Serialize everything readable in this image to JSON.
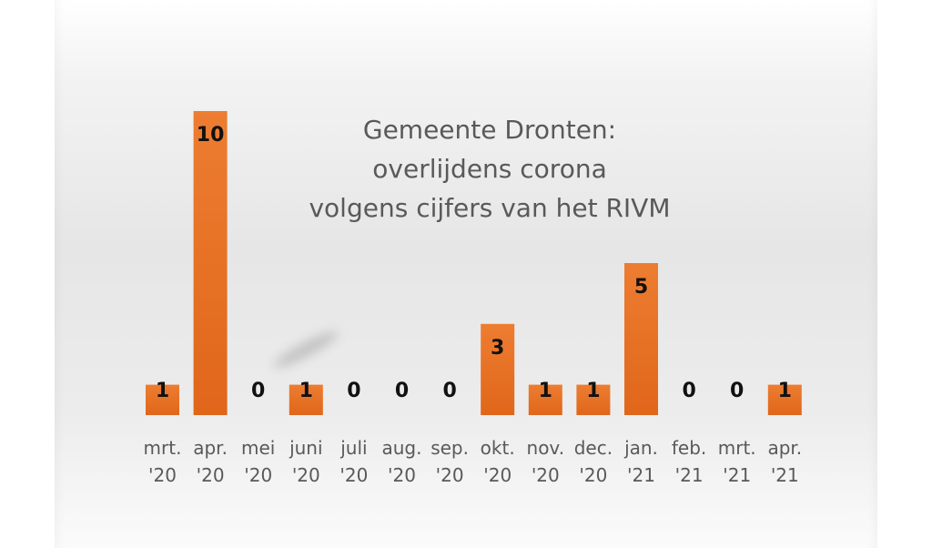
{
  "chart_data": {
    "type": "bar",
    "title_lines": [
      "Gemeente Dronten:",
      "overlijdens corona",
      "volgens cijfers van het RIVM"
    ],
    "categories": [
      [
        "mrt.",
        "'20"
      ],
      [
        "apr.",
        "'20"
      ],
      [
        "mei",
        "'20"
      ],
      [
        "juni",
        "'20"
      ],
      [
        "juli",
        "'20"
      ],
      [
        "aug.",
        "'20"
      ],
      [
        "sep.",
        "'20"
      ],
      [
        "okt.",
        "'20"
      ],
      [
        "nov.",
        "'20"
      ],
      [
        "dec.",
        "'20"
      ],
      [
        "jan.",
        "'21"
      ],
      [
        "feb.",
        "'21"
      ],
      [
        "mrt.",
        "'21"
      ],
      [
        "apr.",
        "'21"
      ]
    ],
    "values": [
      1,
      10,
      0,
      1,
      0,
      0,
      0,
      3,
      1,
      1,
      5,
      0,
      0,
      1
    ],
    "data_labels": [
      "1",
      "10",
      "0",
      "1",
      "0",
      "0",
      "0",
      "3",
      "1",
      "1",
      "5",
      "0",
      "0",
      "1"
    ],
    "ylim": [
      0,
      10
    ],
    "grid": false,
    "legend": "none",
    "bar_color": "#ED7D31",
    "bar_color_dark": "#E0661A"
  }
}
